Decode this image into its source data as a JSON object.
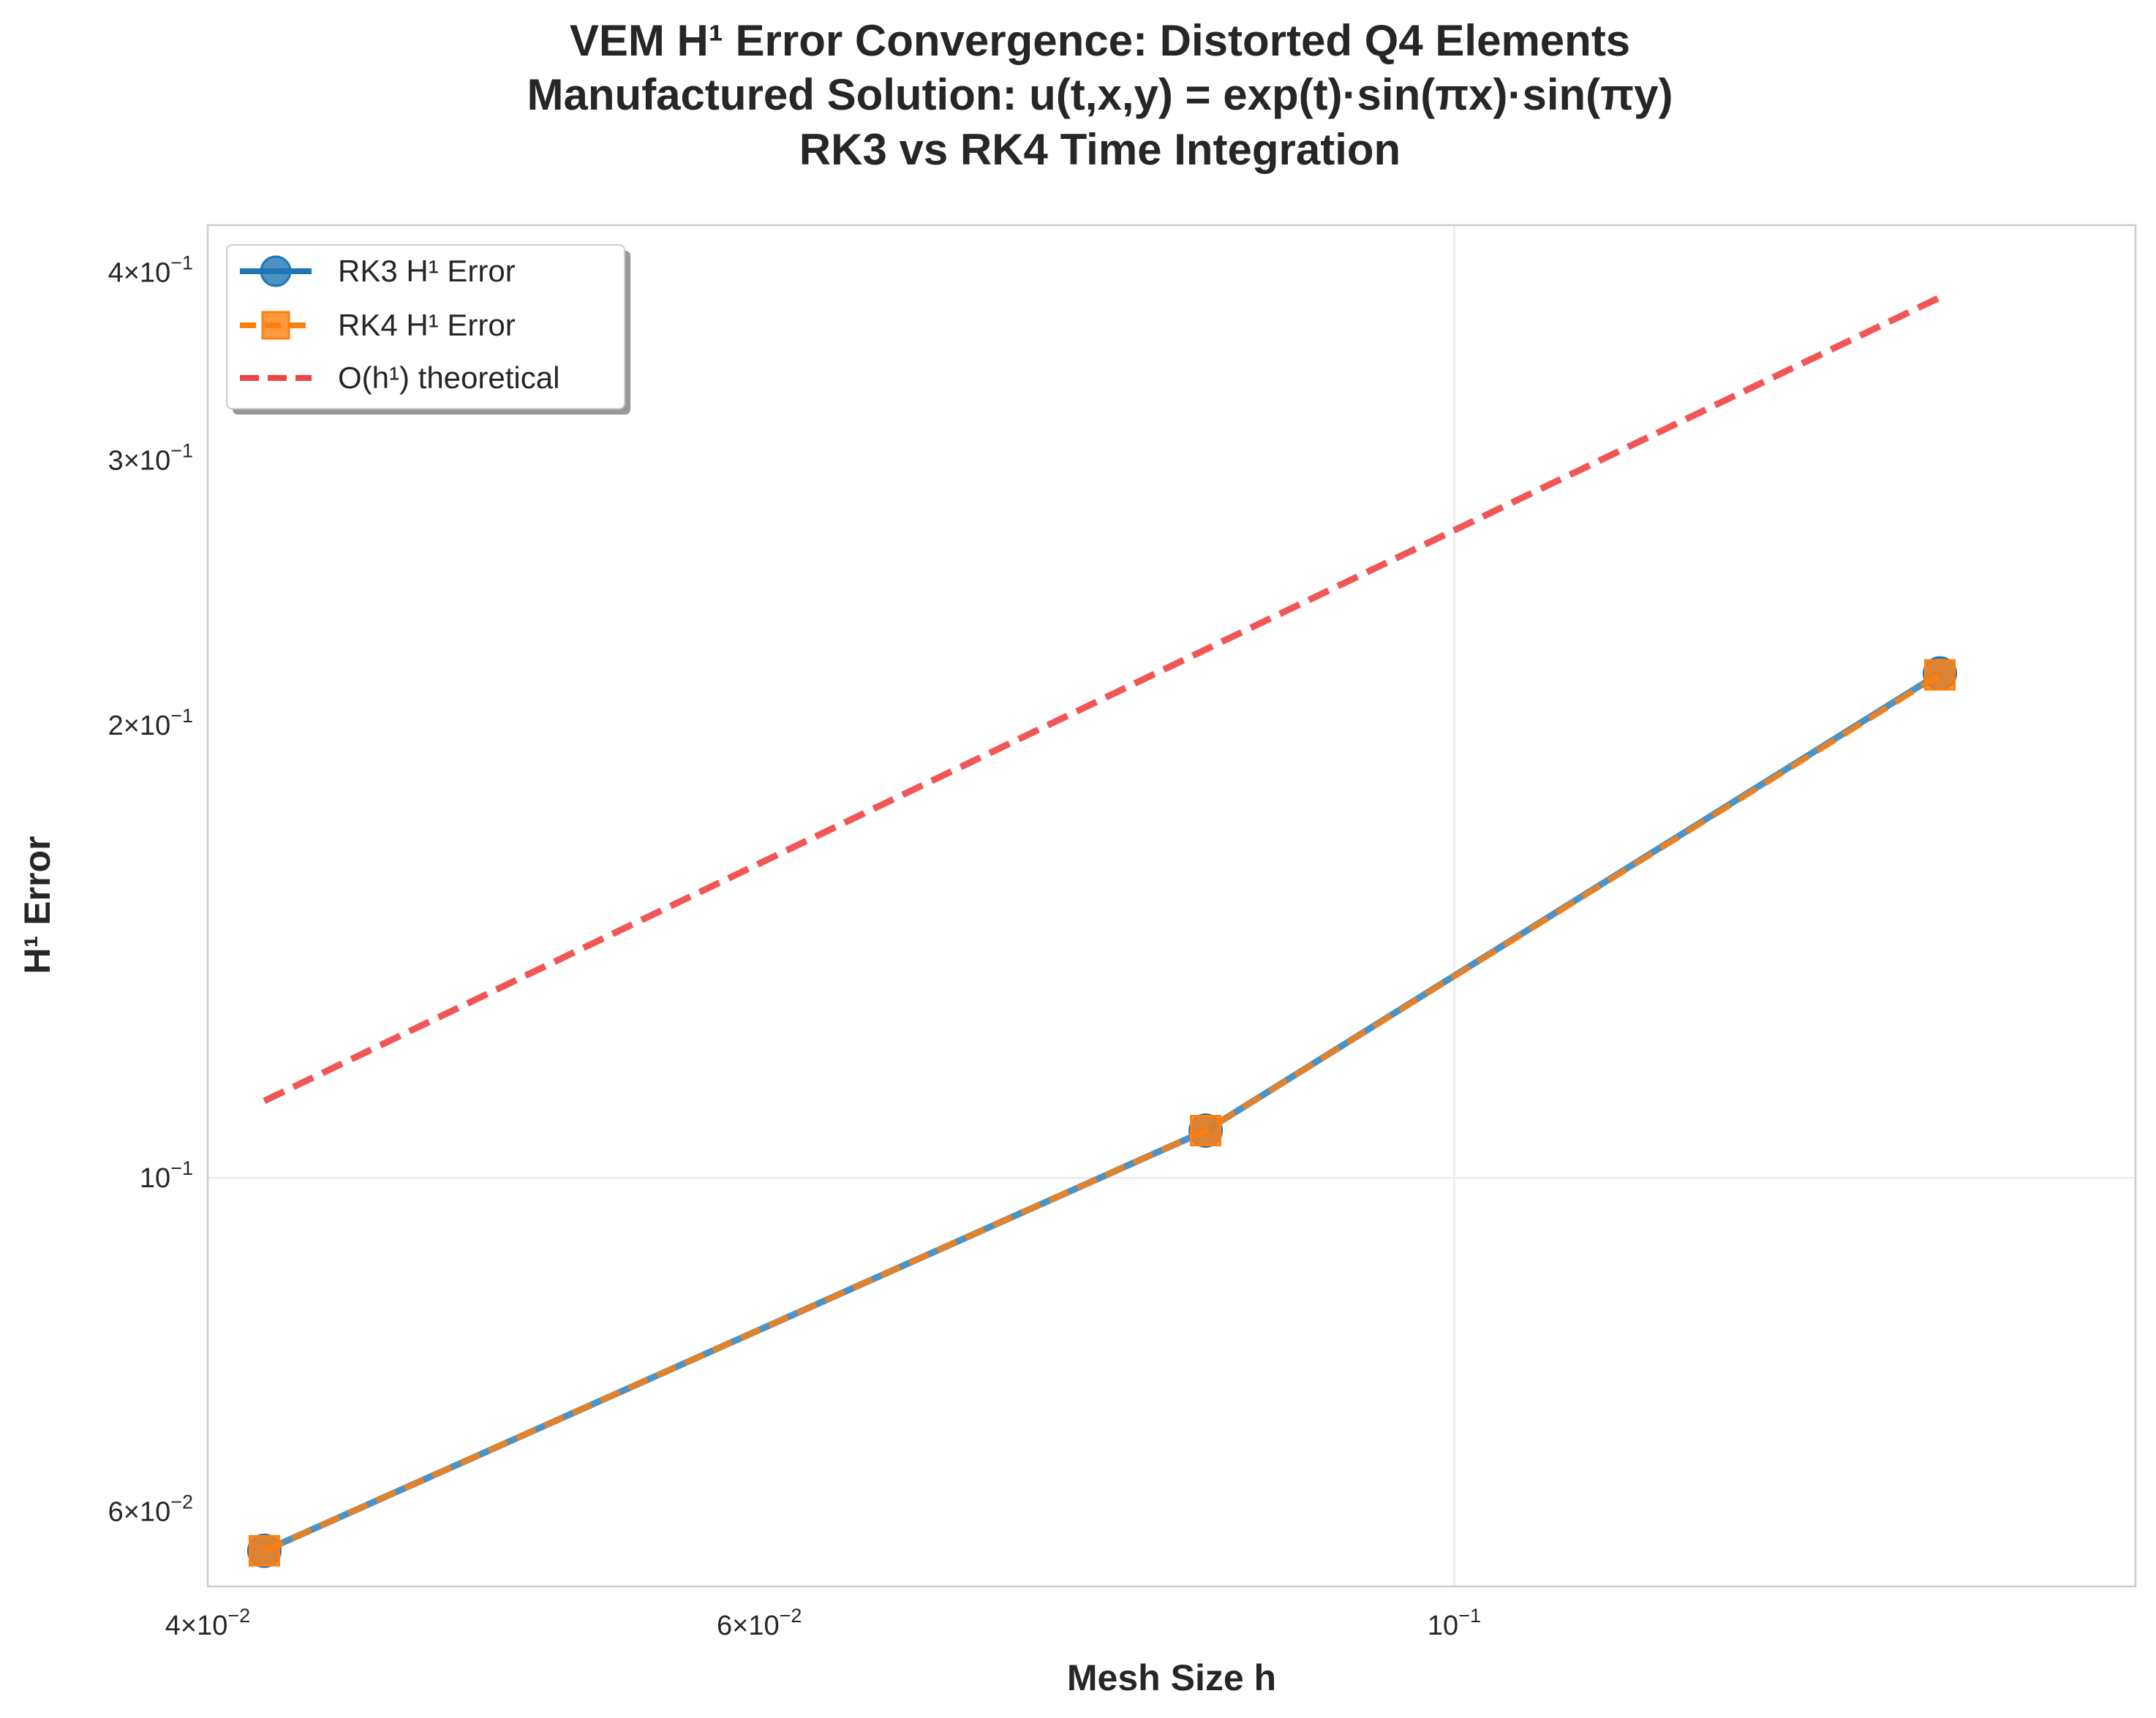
{
  "chart_data": {
    "type": "line",
    "title_lines": [
      "VEM H¹ Error Convergence: Distorted Q4 Elements",
      "Manufactured Solution: u(t,x,y) = exp(t)·sin(πx)·sin(πy)",
      "RK3 vs RK4 Time Integration"
    ],
    "xlabel": "Mesh Size h",
    "ylabel": "H¹ Error",
    "xscale": "log",
    "yscale": "log",
    "xlim": [
      0.04,
      0.165
    ],
    "ylim": [
      0.0535,
      0.43
    ],
    "x_ticks": [
      {
        "value": 0.04,
        "mant": "4",
        "exp": "−2"
      },
      {
        "value": 0.06,
        "mant": "6",
        "exp": "−2"
      },
      {
        "value": 0.1,
        "mant": "",
        "exp": "−1"
      }
    ],
    "y_ticks": [
      {
        "value": 0.06,
        "mant": "6",
        "exp": "−2"
      },
      {
        "value": 0.1,
        "mant": "",
        "exp": "−1"
      },
      {
        "value": 0.2,
        "mant": "2",
        "exp": "−1"
      },
      {
        "value": 0.3,
        "mant": "3",
        "exp": "−1"
      },
      {
        "value": 0.4,
        "mant": "4",
        "exp": "−1"
      }
    ],
    "grid": true,
    "legend_position": "upper-left",
    "series": [
      {
        "name": "RK3 H¹ Error",
        "x": [
          0.0417,
          0.0833,
          0.1429
        ],
        "y": [
          0.0565,
          0.1075,
          0.2165
        ],
        "color": "#1f77b4",
        "linestyle": "solid",
        "marker": "circle"
      },
      {
        "name": "RK4 H¹ Error",
        "x": [
          0.0417,
          0.0833,
          0.1429
        ],
        "y": [
          0.0565,
          0.1075,
          0.216
        ],
        "color": "#ff7f0e",
        "linestyle": "dashed",
        "marker": "square"
      },
      {
        "name": "O(h¹) theoretical",
        "x": [
          0.0417,
          0.1429
        ],
        "y": [
          0.1125,
          0.385
        ],
        "color": "#ef4444",
        "linestyle": "dashed",
        "marker": "none"
      }
    ]
  }
}
